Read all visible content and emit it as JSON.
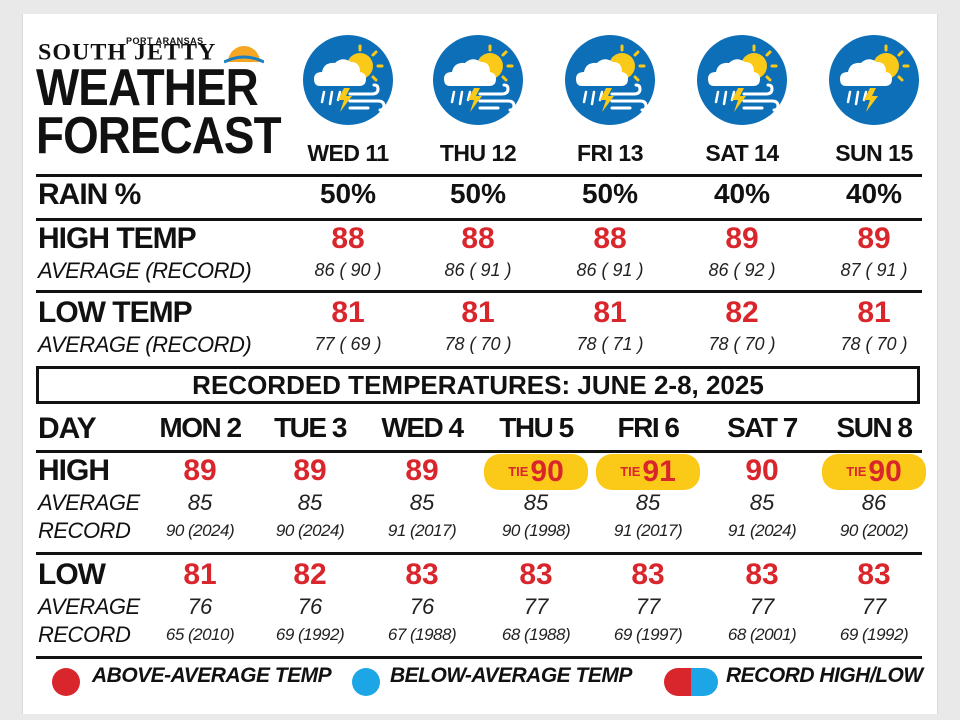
{
  "brand": {
    "small": "PORT ARANSAS",
    "name": "SOUTH JETTY",
    "title_line1": "WEATHER",
    "title_line2": "FORECAST"
  },
  "forecast": {
    "days": [
      {
        "label": "WED 11",
        "rain": "50%",
        "high": "88",
        "high_avg": "86 ( 90 )",
        "low": "81",
        "low_avg": "77 ( 69 )",
        "icon": "storm-wind-sun-icon"
      },
      {
        "label": "THU 12",
        "rain": "50%",
        "high": "88",
        "high_avg": "86 ( 91 )",
        "low": "81",
        "low_avg": "78 ( 70 )",
        "icon": "storm-wind-sun-icon"
      },
      {
        "label": "FRI 13",
        "rain": "50%",
        "high": "88",
        "high_avg": "86 ( 91 )",
        "low": "81",
        "low_avg": "78 ( 71 )",
        "icon": "storm-wind-sun-icon"
      },
      {
        "label": "SAT 14",
        "rain": "40%",
        "high": "89",
        "high_avg": "86 ( 92 )",
        "low": "82",
        "low_avg": "78 ( 70 )",
        "icon": "storm-wind-sun-icon"
      },
      {
        "label": "SUN 15",
        "rain": "40%",
        "high": "89",
        "high_avg": "87 ( 91 )",
        "low": "81",
        "low_avg": "78 ( 70 )",
        "icon": "storm-sun-icon"
      }
    ],
    "rain_label": "RAIN %",
    "high_label": "HIGH TEMP",
    "low_label": "LOW TEMP",
    "avg_record_label": "AVERAGE (RECORD)"
  },
  "recorded": {
    "banner": "RECORDED TEMPERATURES: JUNE 2-8, 2025",
    "day_label": "DAY",
    "high_label": "HIGH",
    "low_label": "LOW",
    "average_label": "AVERAGE",
    "record_label": "RECORD",
    "tie_label": "TIE",
    "days": [
      {
        "label": "MON 2",
        "high": "89",
        "high_tie": false,
        "high_avg": "85",
        "high_rec": "90 (2024)",
        "low": "81",
        "low_avg": "76",
        "low_rec": "65 (2010)"
      },
      {
        "label": "TUE 3",
        "high": "89",
        "high_tie": false,
        "high_avg": "85",
        "high_rec": "90 (2024)",
        "low": "82",
        "low_avg": "76",
        "low_rec": "69 (1992)"
      },
      {
        "label": "WED 4",
        "high": "89",
        "high_tie": false,
        "high_avg": "85",
        "high_rec": "91 (2017)",
        "low": "83",
        "low_avg": "76",
        "low_rec": "67 (1988)"
      },
      {
        "label": "THU 5",
        "high": "90",
        "high_tie": true,
        "high_avg": "85",
        "high_rec": "90 (1998)",
        "low": "83",
        "low_avg": "77",
        "low_rec": "68 (1988)"
      },
      {
        "label": "FRI 6",
        "high": "91",
        "high_tie": true,
        "high_avg": "85",
        "high_rec": "91 (2017)",
        "low": "83",
        "low_avg": "77",
        "low_rec": "69 (1997)"
      },
      {
        "label": "SAT 7",
        "high": "90",
        "high_tie": false,
        "high_avg": "85",
        "high_rec": "91 (2024)",
        "low": "83",
        "low_avg": "77",
        "low_rec": "68 (2001)"
      },
      {
        "label": "SUN 8",
        "high": "90",
        "high_tie": true,
        "high_avg": "86",
        "high_rec": "90 (2002)",
        "low": "83",
        "low_avg": "77",
        "low_rec": "69 (1992)"
      }
    ]
  },
  "legend": {
    "above": "ABOVE-AVERAGE TEMP",
    "below": "BELOW-AVERAGE TEMP",
    "record": "RECORD HIGH/LOW"
  },
  "colors": {
    "red": "#d9262c",
    "blue": "#1ca6e6",
    "icon_bg": "#0d6fb8",
    "tie_yellow": "#fbc918"
  }
}
